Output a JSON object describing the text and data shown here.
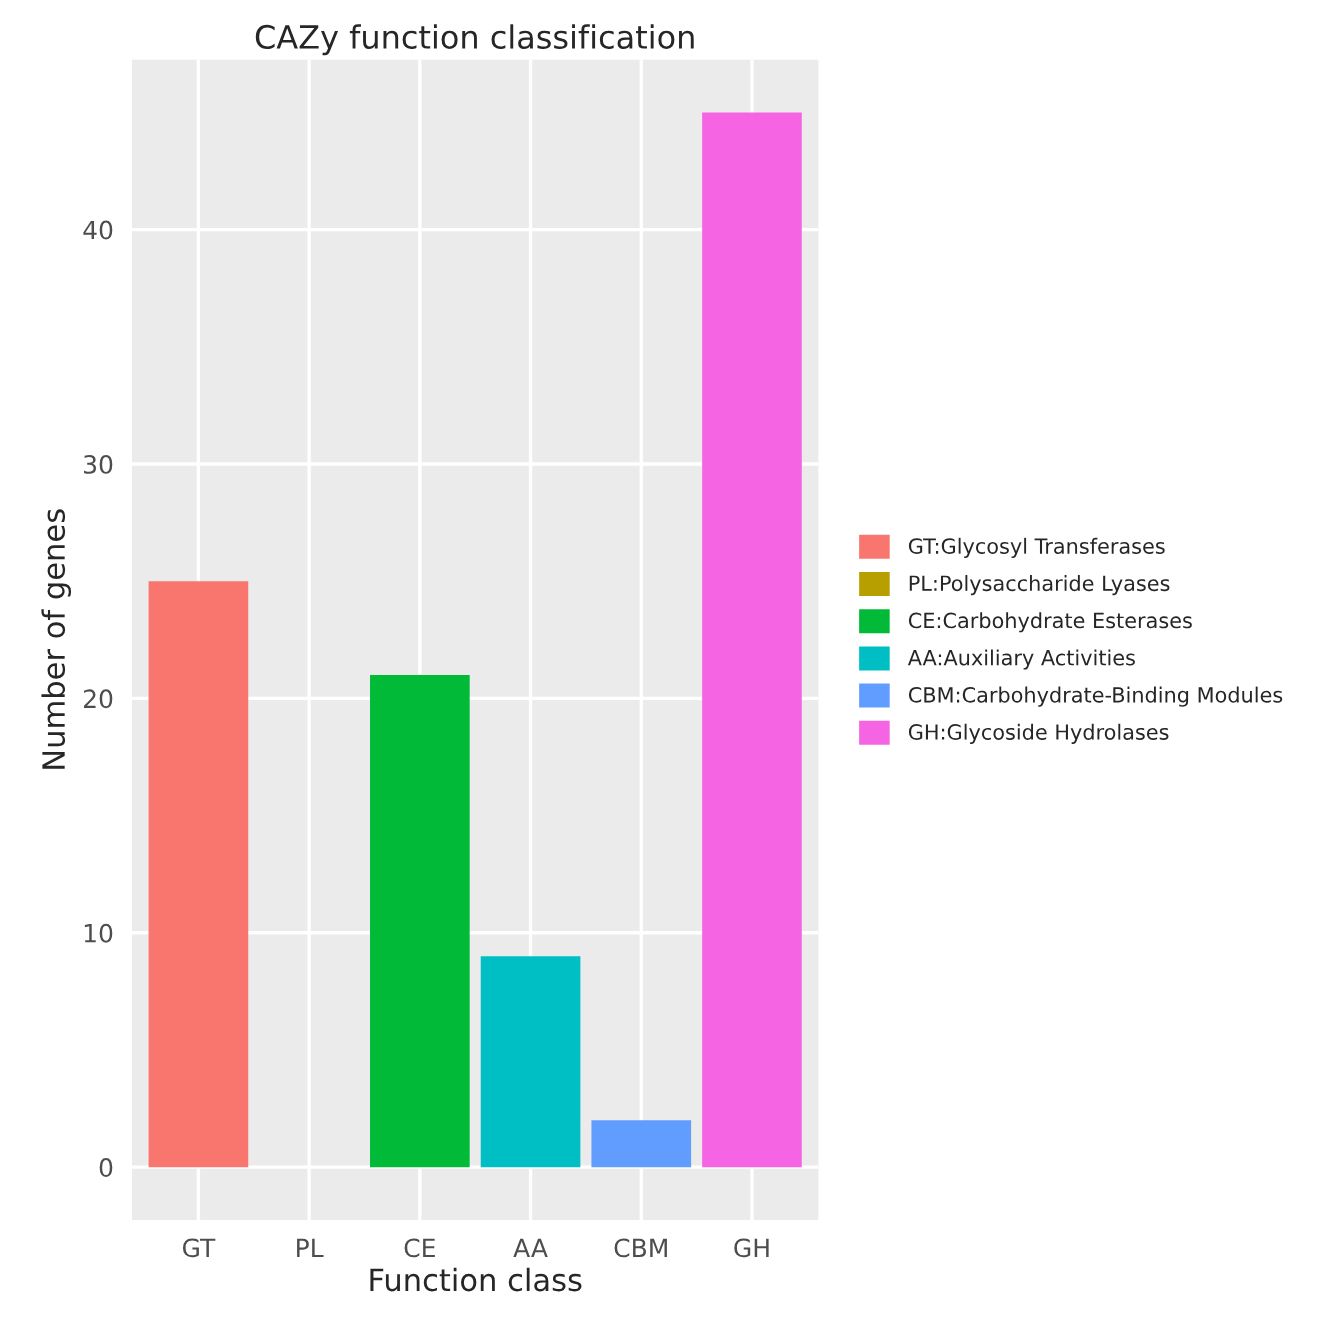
{
  "chart_data": {
    "type": "bar",
    "title": "CAZy function classification",
    "xlabel": "Function class",
    "ylabel": "Number of genes",
    "categories": [
      "GT",
      "PL",
      "CE",
      "AA",
      "CBM",
      "GH"
    ],
    "series": [
      {
        "name": "GT:Glycosyl Transferases",
        "color": "#f8766d",
        "values": [
          25,
          null,
          null,
          null,
          null,
          null
        ]
      },
      {
        "name": "PL:Polysaccharide Lyases",
        "color": "#b79f00",
        "values": [
          null,
          0,
          null,
          null,
          null,
          null
        ]
      },
      {
        "name": "CE:Carbohydrate Esterases",
        "color": "#00ba38",
        "values": [
          null,
          null,
          21,
          null,
          null,
          null
        ]
      },
      {
        "name": "AA:Auxiliary Activities",
        "color": "#00bfc4",
        "values": [
          null,
          null,
          null,
          9,
          null,
          null
        ]
      },
      {
        "name": "CBM:Carbohydrate-Binding Modules",
        "color": "#619cff",
        "values": [
          null,
          null,
          null,
          null,
          2,
          null
        ]
      },
      {
        "name": "GH:Glycoside Hydrolases",
        "color": "#f564e3",
        "values": [
          null,
          null,
          null,
          null,
          null,
          45
        ]
      }
    ],
    "ylim": [
      -2.25,
      47.25
    ],
    "yticks": [
      0,
      10,
      20,
      30,
      40
    ],
    "grid": true,
    "legend": "right"
  }
}
